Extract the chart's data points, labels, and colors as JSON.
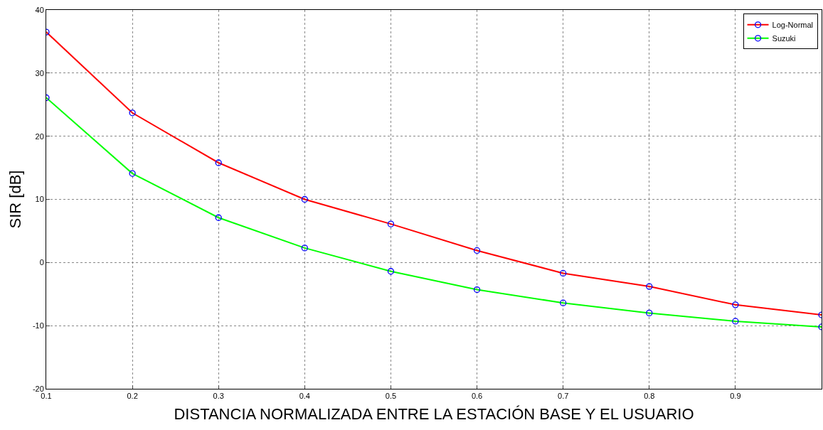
{
  "chart_data": {
    "type": "line",
    "xlabel": "DISTANCIA NORMALIZADA ENTRE LA ESTACIÓN BASE Y EL USUARIO",
    "ylabel": "SIR [dB]",
    "x": [
      0.1,
      0.2,
      0.3,
      0.4,
      0.5,
      0.6,
      0.7,
      0.8,
      0.9,
      1.0
    ],
    "series": [
      {
        "name": "Log-Normal",
        "color": "#ff0000",
        "colors": [
          "#0000ff",
          "#0000ff",
          "#0000ff",
          "#0000ff",
          "#0000ff",
          "#0000ff",
          "#0000ff",
          "#0000ff",
          "#0000ff",
          "#0000ff"
        ],
        "values": [
          36.5,
          23.7,
          15.8,
          10.0,
          6.1,
          1.9,
          -1.7,
          -3.8,
          -6.7,
          -8.3
        ]
      },
      {
        "name": "Suzuki",
        "color": "#00ff00",
        "colors": [
          "#0000ff",
          "#0000ff",
          "#0000ff",
          "#0000ff",
          "#0000ff",
          "#0000ff",
          "#0000ff",
          "#0000ff",
          "#0000ff",
          "#0000ff"
        ],
        "values": [
          26.1,
          14.1,
          7.1,
          2.3,
          -1.4,
          -4.3,
          -6.4,
          -8.0,
          -9.3,
          -10.2
        ]
      }
    ],
    "xlim": [
      0.1,
      1.0
    ],
    "xticks": [
      0.1,
      0.2,
      0.3,
      0.4,
      0.5,
      0.6,
      0.7,
      0.8,
      0.9
    ],
    "ylim": [
      -20,
      40
    ],
    "yticks": [
      -20,
      -10,
      0,
      10,
      20,
      30,
      40
    ],
    "grid": true,
    "legend": "top right",
    "marker": "circle",
    "line_style": "solid"
  }
}
